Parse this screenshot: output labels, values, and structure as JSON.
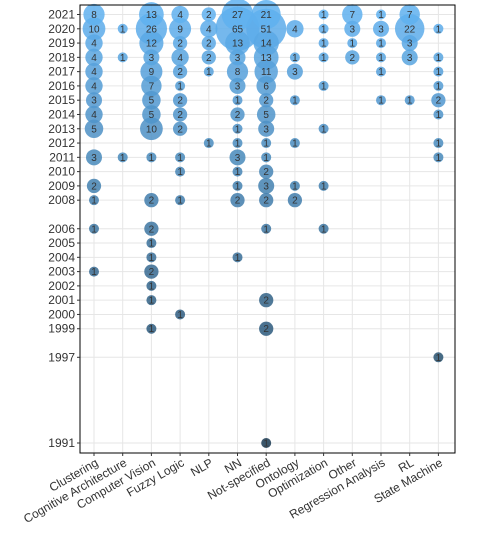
{
  "chart_data": {
    "type": "scatter",
    "title": "",
    "xlabel": "",
    "ylabel": "",
    "categories": [
      "Clustering",
      "Cognitive Architecture",
      "Computer Vision",
      "Fuzzy Logic",
      "NLP",
      "NN",
      "Not-specified",
      "Ontology",
      "Optimization",
      "Other",
      "Regression Analysis",
      "RL",
      "State Machine"
    ],
    "y_ticks": [
      1991,
      1997,
      1999,
      2000,
      2001,
      2002,
      2003,
      2004,
      2005,
      2006,
      2008,
      2009,
      2010,
      2011,
      2012,
      2013,
      2014,
      2015,
      2016,
      2017,
      2018,
      2019,
      2020,
      2021
    ],
    "ylim": [
      1991,
      2021
    ],
    "size_encoding": "count",
    "color_scale": {
      "low": "#1a3a52",
      "high": "#5fb0ef"
    },
    "grid": true,
    "points": [
      {
        "category": "Clustering",
        "year": 2021,
        "count": 8
      },
      {
        "category": "Clustering",
        "year": 2020,
        "count": 10
      },
      {
        "category": "Clustering",
        "year": 2019,
        "count": 4
      },
      {
        "category": "Clustering",
        "year": 2018,
        "count": 4
      },
      {
        "category": "Clustering",
        "year": 2017,
        "count": 4
      },
      {
        "category": "Clustering",
        "year": 2016,
        "count": 4
      },
      {
        "category": "Clustering",
        "year": 2015,
        "count": 3
      },
      {
        "category": "Clustering",
        "year": 2014,
        "count": 4
      },
      {
        "category": "Clustering",
        "year": 2013,
        "count": 5
      },
      {
        "category": "Clustering",
        "year": 2011,
        "count": 3
      },
      {
        "category": "Clustering",
        "year": 2009,
        "count": 2
      },
      {
        "category": "Clustering",
        "year": 2008,
        "count": 1
      },
      {
        "category": "Clustering",
        "year": 2006,
        "count": 1
      },
      {
        "category": "Clustering",
        "year": 2003,
        "count": 1
      },
      {
        "category": "Cognitive Architecture",
        "year": 2020,
        "count": 1
      },
      {
        "category": "Cognitive Architecture",
        "year": 2018,
        "count": 1
      },
      {
        "category": "Cognitive Architecture",
        "year": 2011,
        "count": 1
      },
      {
        "category": "Computer Vision",
        "year": 2021,
        "count": 13
      },
      {
        "category": "Computer Vision",
        "year": 2020,
        "count": 26
      },
      {
        "category": "Computer Vision",
        "year": 2019,
        "count": 12
      },
      {
        "category": "Computer Vision",
        "year": 2018,
        "count": 3
      },
      {
        "category": "Computer Vision",
        "year": 2017,
        "count": 9
      },
      {
        "category": "Computer Vision",
        "year": 2016,
        "count": 7
      },
      {
        "category": "Computer Vision",
        "year": 2015,
        "count": 5
      },
      {
        "category": "Computer Vision",
        "year": 2014,
        "count": 5
      },
      {
        "category": "Computer Vision",
        "year": 2013,
        "count": 10
      },
      {
        "category": "Computer Vision",
        "year": 2011,
        "count": 1
      },
      {
        "category": "Computer Vision",
        "year": 2008,
        "count": 2
      },
      {
        "category": "Computer Vision",
        "year": 2006,
        "count": 2
      },
      {
        "category": "Computer Vision",
        "year": 2005,
        "count": 1
      },
      {
        "category": "Computer Vision",
        "year": 2004,
        "count": 1
      },
      {
        "category": "Computer Vision",
        "year": 2003,
        "count": 2
      },
      {
        "category": "Computer Vision",
        "year": 2002,
        "count": 1
      },
      {
        "category": "Computer Vision",
        "year": 2001,
        "count": 1
      },
      {
        "category": "Computer Vision",
        "year": 1999,
        "count": 1
      },
      {
        "category": "Fuzzy Logic",
        "year": 2021,
        "count": 4
      },
      {
        "category": "Fuzzy Logic",
        "year": 2020,
        "count": 9
      },
      {
        "category": "Fuzzy Logic",
        "year": 2019,
        "count": 2
      },
      {
        "category": "Fuzzy Logic",
        "year": 2018,
        "count": 4
      },
      {
        "category": "Fuzzy Logic",
        "year": 2017,
        "count": 2
      },
      {
        "category": "Fuzzy Logic",
        "year": 2016,
        "count": 1
      },
      {
        "category": "Fuzzy Logic",
        "year": 2015,
        "count": 2
      },
      {
        "category": "Fuzzy Logic",
        "year": 2014,
        "count": 2
      },
      {
        "category": "Fuzzy Logic",
        "year": 2013,
        "count": 2
      },
      {
        "category": "Fuzzy Logic",
        "year": 2011,
        "count": 1
      },
      {
        "category": "Fuzzy Logic",
        "year": 2010,
        "count": 1
      },
      {
        "category": "Fuzzy Logic",
        "year": 2008,
        "count": 1
      },
      {
        "category": "Fuzzy Logic",
        "year": 2000,
        "count": 1
      },
      {
        "category": "NLP",
        "year": 2021,
        "count": 2
      },
      {
        "category": "NLP",
        "year": 2020,
        "count": 4
      },
      {
        "category": "NLP",
        "year": 2019,
        "count": 2
      },
      {
        "category": "NLP",
        "year": 2018,
        "count": 2
      },
      {
        "category": "NLP",
        "year": 2017,
        "count": 1
      },
      {
        "category": "NLP",
        "year": 2012,
        "count": 1
      },
      {
        "category": "NN",
        "year": 2021,
        "count": 27
      },
      {
        "category": "NN",
        "year": 2020,
        "count": 65
      },
      {
        "category": "NN",
        "year": 2019,
        "count": 13
      },
      {
        "category": "NN",
        "year": 2018,
        "count": 3
      },
      {
        "category": "NN",
        "year": 2017,
        "count": 8
      },
      {
        "category": "NN",
        "year": 2016,
        "count": 3
      },
      {
        "category": "NN",
        "year": 2015,
        "count": 1
      },
      {
        "category": "NN",
        "year": 2014,
        "count": 2
      },
      {
        "category": "NN",
        "year": 2013,
        "count": 1
      },
      {
        "category": "NN",
        "year": 2012,
        "count": 1
      },
      {
        "category": "NN",
        "year": 2011,
        "count": 3
      },
      {
        "category": "NN",
        "year": 2010,
        "count": 1
      },
      {
        "category": "NN",
        "year": 2009,
        "count": 1
      },
      {
        "category": "NN",
        "year": 2008,
        "count": 2
      },
      {
        "category": "NN",
        "year": 2004,
        "count": 1
      },
      {
        "category": "Not-specified",
        "year": 2021,
        "count": 21
      },
      {
        "category": "Not-specified",
        "year": 2020,
        "count": 51
      },
      {
        "category": "Not-specified",
        "year": 2019,
        "count": 14
      },
      {
        "category": "Not-specified",
        "year": 2018,
        "count": 13
      },
      {
        "category": "Not-specified",
        "year": 2017,
        "count": 11
      },
      {
        "category": "Not-specified",
        "year": 2016,
        "count": 6
      },
      {
        "category": "Not-specified",
        "year": 2015,
        "count": 2
      },
      {
        "category": "Not-specified",
        "year": 2014,
        "count": 5
      },
      {
        "category": "Not-specified",
        "year": 2013,
        "count": 3
      },
      {
        "category": "Not-specified",
        "year": 2012,
        "count": 1
      },
      {
        "category": "Not-specified",
        "year": 2011,
        "count": 1
      },
      {
        "category": "Not-specified",
        "year": 2010,
        "count": 2
      },
      {
        "category": "Not-specified",
        "year": 2009,
        "count": 3
      },
      {
        "category": "Not-specified",
        "year": 2008,
        "count": 2
      },
      {
        "category": "Not-specified",
        "year": 2006,
        "count": 1
      },
      {
        "category": "Not-specified",
        "year": 2001,
        "count": 2
      },
      {
        "category": "Not-specified",
        "year": 1999,
        "count": 2
      },
      {
        "category": "Not-specified",
        "year": 1991,
        "count": 1
      },
      {
        "category": "Ontology",
        "year": 2020,
        "count": 4
      },
      {
        "category": "Ontology",
        "year": 2018,
        "count": 1
      },
      {
        "category": "Ontology",
        "year": 2017,
        "count": 3
      },
      {
        "category": "Ontology",
        "year": 2015,
        "count": 1
      },
      {
        "category": "Ontology",
        "year": 2012,
        "count": 1
      },
      {
        "category": "Ontology",
        "year": 2009,
        "count": 1
      },
      {
        "category": "Ontology",
        "year": 2008,
        "count": 2
      },
      {
        "category": "Optimization",
        "year": 2021,
        "count": 1
      },
      {
        "category": "Optimization",
        "year": 2020,
        "count": 1
      },
      {
        "category": "Optimization",
        "year": 2019,
        "count": 1
      },
      {
        "category": "Optimization",
        "year": 2018,
        "count": 1
      },
      {
        "category": "Optimization",
        "year": 2016,
        "count": 1
      },
      {
        "category": "Optimization",
        "year": 2013,
        "count": 1
      },
      {
        "category": "Optimization",
        "year": 2009,
        "count": 1
      },
      {
        "category": "Optimization",
        "year": 2006,
        "count": 1
      },
      {
        "category": "Other",
        "year": 2021,
        "count": 7
      },
      {
        "category": "Other",
        "year": 2020,
        "count": 3
      },
      {
        "category": "Other",
        "year": 2019,
        "count": 1
      },
      {
        "category": "Other",
        "year": 2018,
        "count": 2
      },
      {
        "category": "Regression Analysis",
        "year": 2021,
        "count": 1
      },
      {
        "category": "Regression Analysis",
        "year": 2020,
        "count": 3
      },
      {
        "category": "Regression Analysis",
        "year": 2019,
        "count": 1
      },
      {
        "category": "Regression Analysis",
        "year": 2018,
        "count": 1
      },
      {
        "category": "Regression Analysis",
        "year": 2017,
        "count": 1
      },
      {
        "category": "Regression Analysis",
        "year": 2015,
        "count": 1
      },
      {
        "category": "RL",
        "year": 2021,
        "count": 7
      },
      {
        "category": "RL",
        "year": 2020,
        "count": 22
      },
      {
        "category": "RL",
        "year": 2019,
        "count": 3
      },
      {
        "category": "RL",
        "year": 2018,
        "count": 3
      },
      {
        "category": "RL",
        "year": 2015,
        "count": 1
      },
      {
        "category": "State Machine",
        "year": 2020,
        "count": 1
      },
      {
        "category": "State Machine",
        "year": 2018,
        "count": 1
      },
      {
        "category": "State Machine",
        "year": 2017,
        "count": 1
      },
      {
        "category": "State Machine",
        "year": 2016,
        "count": 1
      },
      {
        "category": "State Machine",
        "year": 2015,
        "count": 2
      },
      {
        "category": "State Machine",
        "year": 2014,
        "count": 1
      },
      {
        "category": "State Machine",
        "year": 2012,
        "count": 1
      },
      {
        "category": "State Machine",
        "year": 2011,
        "count": 1
      },
      {
        "category": "State Machine",
        "year": 1997,
        "count": 1
      }
    ]
  }
}
